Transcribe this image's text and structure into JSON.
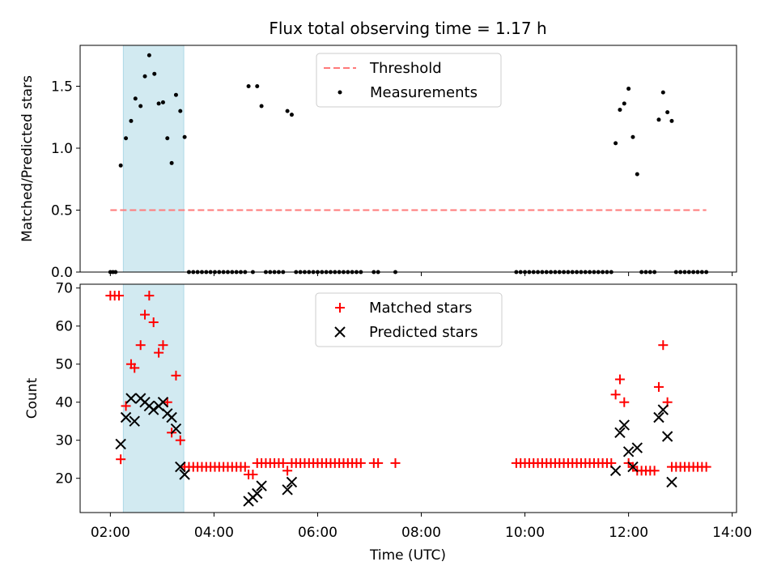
{
  "title": "Flux total observing time = 1.17 h",
  "chart_data": [
    {
      "type": "scatter",
      "ylabel": "Matched/Predicted stars",
      "xlabel": "",
      "x_is_time": true,
      "xlim": [
        "01:25",
        "14:05"
      ],
      "ylim": [
        0,
        1.83
      ],
      "yticks": [
        "0.0",
        "0.5",
        "1.0",
        "1.5"
      ],
      "grid": false,
      "legend_position": "upper center",
      "legend": [
        "Threshold",
        "Measurements"
      ],
      "shaded_region": {
        "x": [
          "02:15",
          "03:25"
        ],
        "color": "#add8e6"
      },
      "threshold": {
        "name": "Threshold",
        "y": 0.5,
        "x": [
          "02:00",
          "13:30"
        ],
        "color": "#ff7a7a"
      },
      "series": [
        {
          "name": "Measurements",
          "color": "#000000",
          "points": [
            [
              "02:00",
              0
            ],
            [
              "02:03",
              0
            ],
            [
              "02:06",
              0
            ],
            [
              "02:12",
              0.86
            ],
            [
              "02:18",
              1.08
            ],
            [
              "02:24",
              1.22
            ],
            [
              "02:29",
              1.4
            ],
            [
              "02:35",
              1.34
            ],
            [
              "02:40",
              1.58
            ],
            [
              "02:45",
              1.75
            ],
            [
              "02:51",
              1.6
            ],
            [
              "02:56",
              1.36
            ],
            [
              "03:01",
              1.37
            ],
            [
              "03:06",
              1.08
            ],
            [
              "03:11",
              0.88
            ],
            [
              "03:16",
              1.43
            ],
            [
              "03:21",
              1.3
            ],
            [
              "03:26",
              1.09
            ],
            [
              "03:31",
              0
            ],
            [
              "03:36",
              0
            ],
            [
              "03:41",
              0
            ],
            [
              "03:46",
              0
            ],
            [
              "03:51",
              0
            ],
            [
              "03:56",
              0
            ],
            [
              "04:01",
              0
            ],
            [
              "04:06",
              0
            ],
            [
              "04:11",
              0
            ],
            [
              "04:16",
              0
            ],
            [
              "04:21",
              0
            ],
            [
              "04:26",
              0
            ],
            [
              "04:31",
              0
            ],
            [
              "04:36",
              0
            ],
            [
              "04:40",
              1.5
            ],
            [
              "04:45",
              0
            ],
            [
              "04:50",
              1.5
            ],
            [
              "04:55",
              1.34
            ],
            [
              "05:00",
              0
            ],
            [
              "05:05",
              0
            ],
            [
              "05:10",
              0
            ],
            [
              "05:15",
              0
            ],
            [
              "05:20",
              0
            ],
            [
              "05:25",
              1.3
            ],
            [
              "05:30",
              1.27
            ],
            [
              "05:35",
              0
            ],
            [
              "05:40",
              0
            ],
            [
              "05:45",
              0
            ],
            [
              "05:50",
              0
            ],
            [
              "05:55",
              0
            ],
            [
              "06:00",
              0
            ],
            [
              "06:05",
              0
            ],
            [
              "06:10",
              0
            ],
            [
              "06:15",
              0
            ],
            [
              "06:20",
              0
            ],
            [
              "06:25",
              0
            ],
            [
              "06:30",
              0
            ],
            [
              "06:35",
              0
            ],
            [
              "06:40",
              0
            ],
            [
              "06:45",
              0
            ],
            [
              "06:50",
              0
            ],
            [
              "07:05",
              0
            ],
            [
              "07:10",
              0
            ],
            [
              "07:30",
              0
            ],
            [
              "09:50",
              0
            ],
            [
              "09:55",
              0
            ],
            [
              "10:00",
              0
            ],
            [
              "10:05",
              0
            ],
            [
              "10:10",
              0
            ],
            [
              "10:15",
              0
            ],
            [
              "10:20",
              0
            ],
            [
              "10:25",
              0
            ],
            [
              "10:30",
              0
            ],
            [
              "10:35",
              0
            ],
            [
              "10:40",
              0
            ],
            [
              "10:45",
              0
            ],
            [
              "10:50",
              0
            ],
            [
              "10:55",
              0
            ],
            [
              "11:00",
              0
            ],
            [
              "11:05",
              0
            ],
            [
              "11:10",
              0
            ],
            [
              "11:15",
              0
            ],
            [
              "11:20",
              0
            ],
            [
              "11:25",
              0
            ],
            [
              "11:30",
              0
            ],
            [
              "11:35",
              0
            ],
            [
              "11:40",
              0
            ],
            [
              "11:45",
              1.04
            ],
            [
              "11:50",
              1.31
            ],
            [
              "11:55",
              1.36
            ],
            [
              "12:00",
              1.48
            ],
            [
              "12:05",
              1.09
            ],
            [
              "12:10",
              0.79
            ],
            [
              "12:15",
              0
            ],
            [
              "12:20",
              0
            ],
            [
              "12:25",
              0
            ],
            [
              "12:30",
              0
            ],
            [
              "12:35",
              1.23
            ],
            [
              "12:40",
              1.45
            ],
            [
              "12:45",
              1.29
            ],
            [
              "12:50",
              1.22
            ],
            [
              "12:55",
              0
            ],
            [
              "13:00",
              0
            ],
            [
              "13:05",
              0
            ],
            [
              "13:10",
              0
            ],
            [
              "13:15",
              0
            ],
            [
              "13:20",
              0
            ],
            [
              "13:25",
              0
            ],
            [
              "13:30",
              0
            ]
          ]
        }
      ]
    },
    {
      "type": "scatter",
      "ylabel": "Count",
      "xlabel": "Time (UTC)",
      "x_is_time": true,
      "xlim": [
        "01:25",
        "14:05"
      ],
      "ylim": [
        11,
        71
      ],
      "xticks": [
        "02:00",
        "04:00",
        "06:00",
        "08:00",
        "10:00",
        "12:00",
        "14:00"
      ],
      "yticks": [
        "20",
        "30",
        "40",
        "50",
        "60",
        "70"
      ],
      "grid": false,
      "legend_position": "upper center",
      "legend": [
        "Matched stars",
        "Predicted stars"
      ],
      "shaded_region": {
        "x": [
          "02:15",
          "03:25"
        ],
        "color": "#add8e6"
      },
      "series": [
        {
          "name": "Matched stars",
          "marker": "plus",
          "color": "#ff0000",
          "points": [
            [
              "02:00",
              68
            ],
            [
              "02:05",
              68
            ],
            [
              "02:10",
              68
            ],
            [
              "02:12",
              25
            ],
            [
              "02:18",
              39
            ],
            [
              "02:24",
              50
            ],
            [
              "02:28",
              49
            ],
            [
              "02:35",
              55
            ],
            [
              "02:40",
              63
            ],
            [
              "02:45",
              68
            ],
            [
              "02:50",
              61
            ],
            [
              "02:56",
              53
            ],
            [
              "03:01",
              55
            ],
            [
              "03:06",
              40
            ],
            [
              "03:11",
              32
            ],
            [
              "03:16",
              47
            ],
            [
              "03:21",
              30
            ],
            [
              "03:26",
              23
            ],
            [
              "03:31",
              23
            ],
            [
              "03:36",
              23
            ],
            [
              "03:41",
              23
            ],
            [
              "03:46",
              23
            ],
            [
              "03:51",
              23
            ],
            [
              "03:56",
              23
            ],
            [
              "04:01",
              23
            ],
            [
              "04:06",
              23
            ],
            [
              "04:11",
              23
            ],
            [
              "04:16",
              23
            ],
            [
              "04:21",
              23
            ],
            [
              "04:26",
              23
            ],
            [
              "04:31",
              23
            ],
            [
              "04:36",
              23
            ],
            [
              "04:40",
              21
            ],
            [
              "04:45",
              21
            ],
            [
              "04:50",
              24
            ],
            [
              "04:55",
              24
            ],
            [
              "05:00",
              24
            ],
            [
              "05:05",
              24
            ],
            [
              "05:10",
              24
            ],
            [
              "05:15",
              24
            ],
            [
              "05:20",
              24
            ],
            [
              "05:25",
              22
            ],
            [
              "05:30",
              24
            ],
            [
              "05:35",
              24
            ],
            [
              "05:40",
              24
            ],
            [
              "05:45",
              24
            ],
            [
              "05:50",
              24
            ],
            [
              "05:55",
              24
            ],
            [
              "06:00",
              24
            ],
            [
              "06:05",
              24
            ],
            [
              "06:10",
              24
            ],
            [
              "06:15",
              24
            ],
            [
              "06:20",
              24
            ],
            [
              "06:25",
              24
            ],
            [
              "06:30",
              24
            ],
            [
              "06:35",
              24
            ],
            [
              "06:40",
              24
            ],
            [
              "06:45",
              24
            ],
            [
              "06:50",
              24
            ],
            [
              "07:05",
              24
            ],
            [
              "07:10",
              24
            ],
            [
              "07:30",
              24
            ],
            [
              "09:50",
              24
            ],
            [
              "09:55",
              24
            ],
            [
              "10:00",
              24
            ],
            [
              "10:05",
              24
            ],
            [
              "10:10",
              24
            ],
            [
              "10:15",
              24
            ],
            [
              "10:20",
              24
            ],
            [
              "10:25",
              24
            ],
            [
              "10:30",
              24
            ],
            [
              "10:35",
              24
            ],
            [
              "10:40",
              24
            ],
            [
              "10:45",
              24
            ],
            [
              "10:50",
              24
            ],
            [
              "10:55",
              24
            ],
            [
              "11:00",
              24
            ],
            [
              "11:05",
              24
            ],
            [
              "11:10",
              24
            ],
            [
              "11:15",
              24
            ],
            [
              "11:20",
              24
            ],
            [
              "11:25",
              24
            ],
            [
              "11:30",
              24
            ],
            [
              "11:35",
              24
            ],
            [
              "11:40",
              24
            ],
            [
              "11:45",
              42
            ],
            [
              "11:50",
              46
            ],
            [
              "11:55",
              40
            ],
            [
              "12:00",
              24
            ],
            [
              "12:05",
              23
            ],
            [
              "12:10",
              22
            ],
            [
              "12:15",
              22
            ],
            [
              "12:20",
              22
            ],
            [
              "12:25",
              22
            ],
            [
              "12:30",
              22
            ],
            [
              "12:35",
              44
            ],
            [
              "12:40",
              55
            ],
            [
              "12:45",
              40
            ],
            [
              "12:50",
              23
            ],
            [
              "12:55",
              23
            ],
            [
              "13:00",
              23
            ],
            [
              "13:05",
              23
            ],
            [
              "13:10",
              23
            ],
            [
              "13:15",
              23
            ],
            [
              "13:20",
              23
            ],
            [
              "13:25",
              23
            ],
            [
              "13:30",
              23
            ]
          ]
        },
        {
          "name": "Predicted stars",
          "marker": "x",
          "color": "#000000",
          "points": [
            [
              "02:12",
              29
            ],
            [
              "02:18",
              36
            ],
            [
              "02:24",
              41
            ],
            [
              "02:28",
              35
            ],
            [
              "02:35",
              41
            ],
            [
              "02:40",
              40
            ],
            [
              "02:45",
              39
            ],
            [
              "02:50",
              38
            ],
            [
              "02:56",
              39
            ],
            [
              "03:01",
              40
            ],
            [
              "03:06",
              37
            ],
            [
              "03:11",
              36
            ],
            [
              "03:16",
              33
            ],
            [
              "03:21",
              23
            ],
            [
              "03:26",
              21
            ],
            [
              "04:40",
              14
            ],
            [
              "04:45",
              15
            ],
            [
              "04:50",
              16
            ],
            [
              "04:55",
              18
            ],
            [
              "05:25",
              17
            ],
            [
              "05:30",
              19
            ],
            [
              "11:45",
              22
            ],
            [
              "11:50",
              32
            ],
            [
              "11:55",
              34
            ],
            [
              "12:00",
              27
            ],
            [
              "12:05",
              23
            ],
            [
              "12:10",
              28
            ],
            [
              "12:35",
              36
            ],
            [
              "12:40",
              38
            ],
            [
              "12:45",
              31
            ],
            [
              "12:50",
              19
            ]
          ]
        }
      ]
    }
  ]
}
